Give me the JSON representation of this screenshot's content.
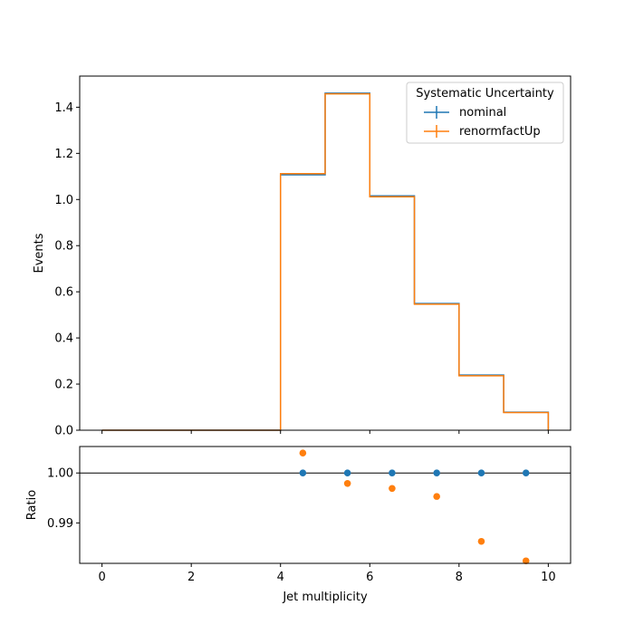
{
  "chart_data": [
    {
      "type": "line",
      "title": "",
      "xlabel": "",
      "ylabel": "Events",
      "xlim": [
        -0.5,
        10.5
      ],
      "ylim": [
        0,
        1.535
      ],
      "yticks": [
        "0.0",
        "0.2",
        "0.4",
        "0.6",
        "0.8",
        "1.0",
        "1.2",
        "1.4"
      ],
      "grid": false,
      "legend": {
        "title": "Systematic Uncertainty",
        "placement": "top-right"
      },
      "bin_edges": [
        0,
        1,
        2,
        3,
        4,
        5,
        6,
        7,
        8,
        9,
        10
      ],
      "series": [
        {
          "name": "nominal",
          "color": "#1f77b4",
          "values": [
            0,
            0,
            0,
            0,
            1.107,
            1.461,
            1.016,
            0.549,
            0.239,
            0.078
          ]
        },
        {
          "name": "renormfactUp",
          "color": "#ff7f0e",
          "values": [
            0,
            0,
            0,
            0,
            1.112,
            1.458,
            1.012,
            0.546,
            0.236,
            0.0765
          ]
        }
      ]
    },
    {
      "type": "scatter",
      "title": "",
      "xlabel": "Jet multiplicity",
      "ylabel": "Ratio",
      "xlim": [
        -0.5,
        10.5
      ],
      "ylim": [
        0.9819,
        1.0053
      ],
      "xticks": [
        "0",
        "2",
        "4",
        "6",
        "8",
        "10"
      ],
      "yticks": [
        "0.99",
        "1.00"
      ],
      "reference_line": 1.0,
      "grid": false,
      "series": [
        {
          "name": "nominal",
          "color": "#1f77b4",
          "x": [
            4.5,
            5.5,
            6.5,
            7.5,
            8.5,
            9.5
          ],
          "y": [
            1.0,
            1.0,
            1.0,
            1.0,
            1.0,
            1.0
          ]
        },
        {
          "name": "renormfactUp",
          "color": "#ff7f0e",
          "x": [
            4.5,
            5.5,
            6.5,
            7.5,
            8.5,
            9.5
          ],
          "y": [
            1.004,
            0.9979,
            0.9969,
            0.9953,
            0.9863,
            0.9824
          ]
        }
      ]
    }
  ]
}
